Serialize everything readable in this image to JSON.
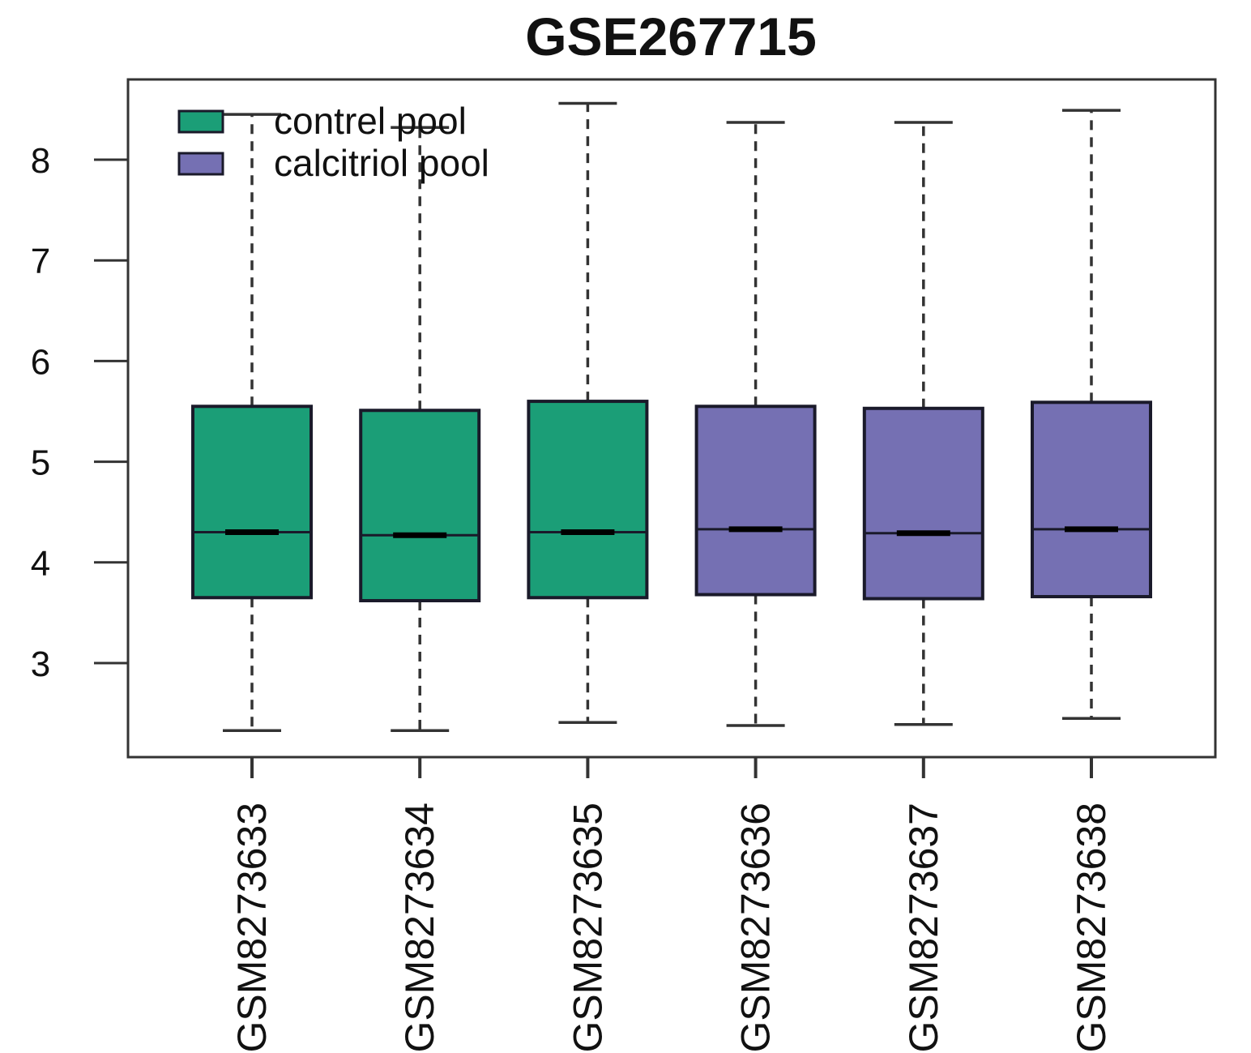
{
  "chart_data": {
    "type": "boxplot",
    "title": "GSE267715",
    "xlabel": "",
    "ylabel": "",
    "ylim": [
      2.1,
      8.8
    ],
    "yticks": [
      3,
      4,
      5,
      6,
      7,
      8
    ],
    "ytick_labels": [
      "3",
      "4",
      "5",
      "6",
      "7",
      "8"
    ],
    "grid": false,
    "legend": {
      "position": "top-left",
      "entries": [
        {
          "label": "contrel pool",
          "color": "#1b9e77"
        },
        {
          "label": "calcitriol pool",
          "color": "#7570b3"
        }
      ]
    },
    "series": [
      {
        "name": "GSM8273633",
        "group": "contrel pool",
        "color": "#1b9e77",
        "min": 2.33,
        "q1": 3.65,
        "median": 4.3,
        "q3": 5.55,
        "max": 8.45
      },
      {
        "name": "GSM8273634",
        "group": "contrel pool",
        "color": "#1b9e77",
        "min": 2.33,
        "q1": 3.62,
        "median": 4.27,
        "q3": 5.51,
        "max": 8.32
      },
      {
        "name": "GSM8273635",
        "group": "contrel pool",
        "color": "#1b9e77",
        "min": 2.41,
        "q1": 3.65,
        "median": 4.3,
        "q3": 5.6,
        "max": 8.56
      },
      {
        "name": "GSM8273636",
        "group": "calcitriol pool",
        "color": "#7570b3",
        "min": 2.38,
        "q1": 3.68,
        "median": 4.33,
        "q3": 5.55,
        "max": 8.37
      },
      {
        "name": "GSM8273637",
        "group": "calcitriol pool",
        "color": "#7570b3",
        "min": 2.39,
        "q1": 3.64,
        "median": 4.29,
        "q3": 5.53,
        "max": 8.37
      },
      {
        "name": "GSM8273638",
        "group": "calcitriol pool",
        "color": "#7570b3",
        "min": 2.45,
        "q1": 3.66,
        "median": 4.33,
        "q3": 5.59,
        "max": 8.49
      }
    ]
  }
}
